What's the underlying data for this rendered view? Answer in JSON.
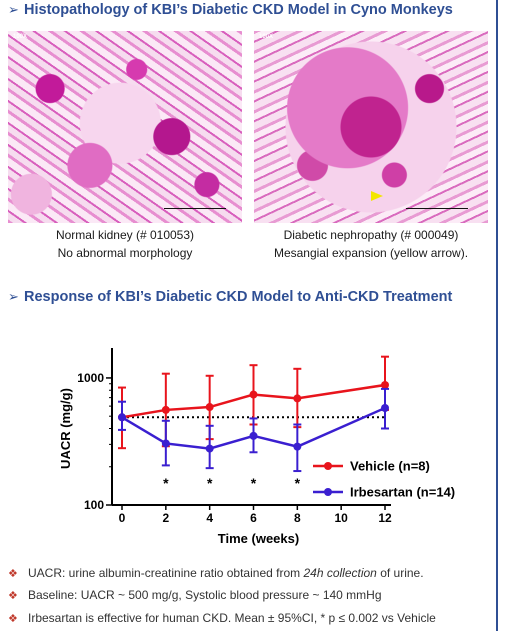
{
  "section1": {
    "arrow": "➢",
    "title": "Histopathology of KBI’s Diabetic CKD Model in Cyno Monkeys"
  },
  "images": [
    {
      "magnification": "100X",
      "caption_line1": "Normal kidney (# 010053)",
      "caption_line2": "No abnormal morphology"
    },
    {
      "magnification": "100X",
      "caption_line1": "Diabetic nephropathy (# 000049)",
      "caption_line2": "Mesangial expansion (yellow arrow)."
    }
  ],
  "section2": {
    "arrow": "➢",
    "title": "Response of KBI’s Diabetic CKD Model to Anti-CKD Treatment"
  },
  "chart_data": {
    "type": "line",
    "xlabel": "Time (weeks)",
    "ylabel": "UACR (mg/g)",
    "x_ticks": [
      0,
      2,
      4,
      6,
      8,
      10,
      12
    ],
    "y_ticks": [
      100,
      1000
    ],
    "y_scale": "log",
    "xlim": [
      0,
      12
    ],
    "ylim": [
      100,
      1600
    ],
    "baseline_y": 490,
    "legend_position": "right",
    "series": [
      {
        "name": "Vehicle (n=8)",
        "color": "#e8141c",
        "x": [
          0,
          2,
          4,
          6,
          8,
          12
        ],
        "y": [
          490,
          560,
          590,
          740,
          690,
          880
        ],
        "upper": [
          840,
          1080,
          1040,
          1260,
          1180,
          1470
        ],
        "lower": [
          280,
          290,
          330,
          430,
          410,
          560
        ]
      },
      {
        "name": "Irbesartan (n=14)",
        "color": "#3a1fd0",
        "x": [
          0,
          2,
          4,
          6,
          8,
          12
        ],
        "y": [
          490,
          305,
          278,
          350,
          288,
          580
        ],
        "upper": [
          650,
          460,
          420,
          480,
          430,
          820
        ],
        "lower": [
          390,
          205,
          195,
          260,
          185,
          400
        ]
      }
    ],
    "significance": [
      {
        "x": 2,
        "label": "*"
      },
      {
        "x": 4,
        "label": "*"
      },
      {
        "x": 6,
        "label": "*"
      },
      {
        "x": 8,
        "label": "*"
      }
    ]
  },
  "notes": {
    "mark": "❖",
    "items": [
      [
        "UACR: urine albumin-creatinine ratio obtained from ",
        "24h collection",
        " of urine."
      ],
      [
        "Baseline: UACR ~ 500 mg/g, Systolic blood pressure ~ 140 mmHg"
      ],
      [
        "Irbesartan is effective for human CKD. Mean ± 95%CI, * p ≤ 0.002 vs Vehicle"
      ]
    ]
  }
}
